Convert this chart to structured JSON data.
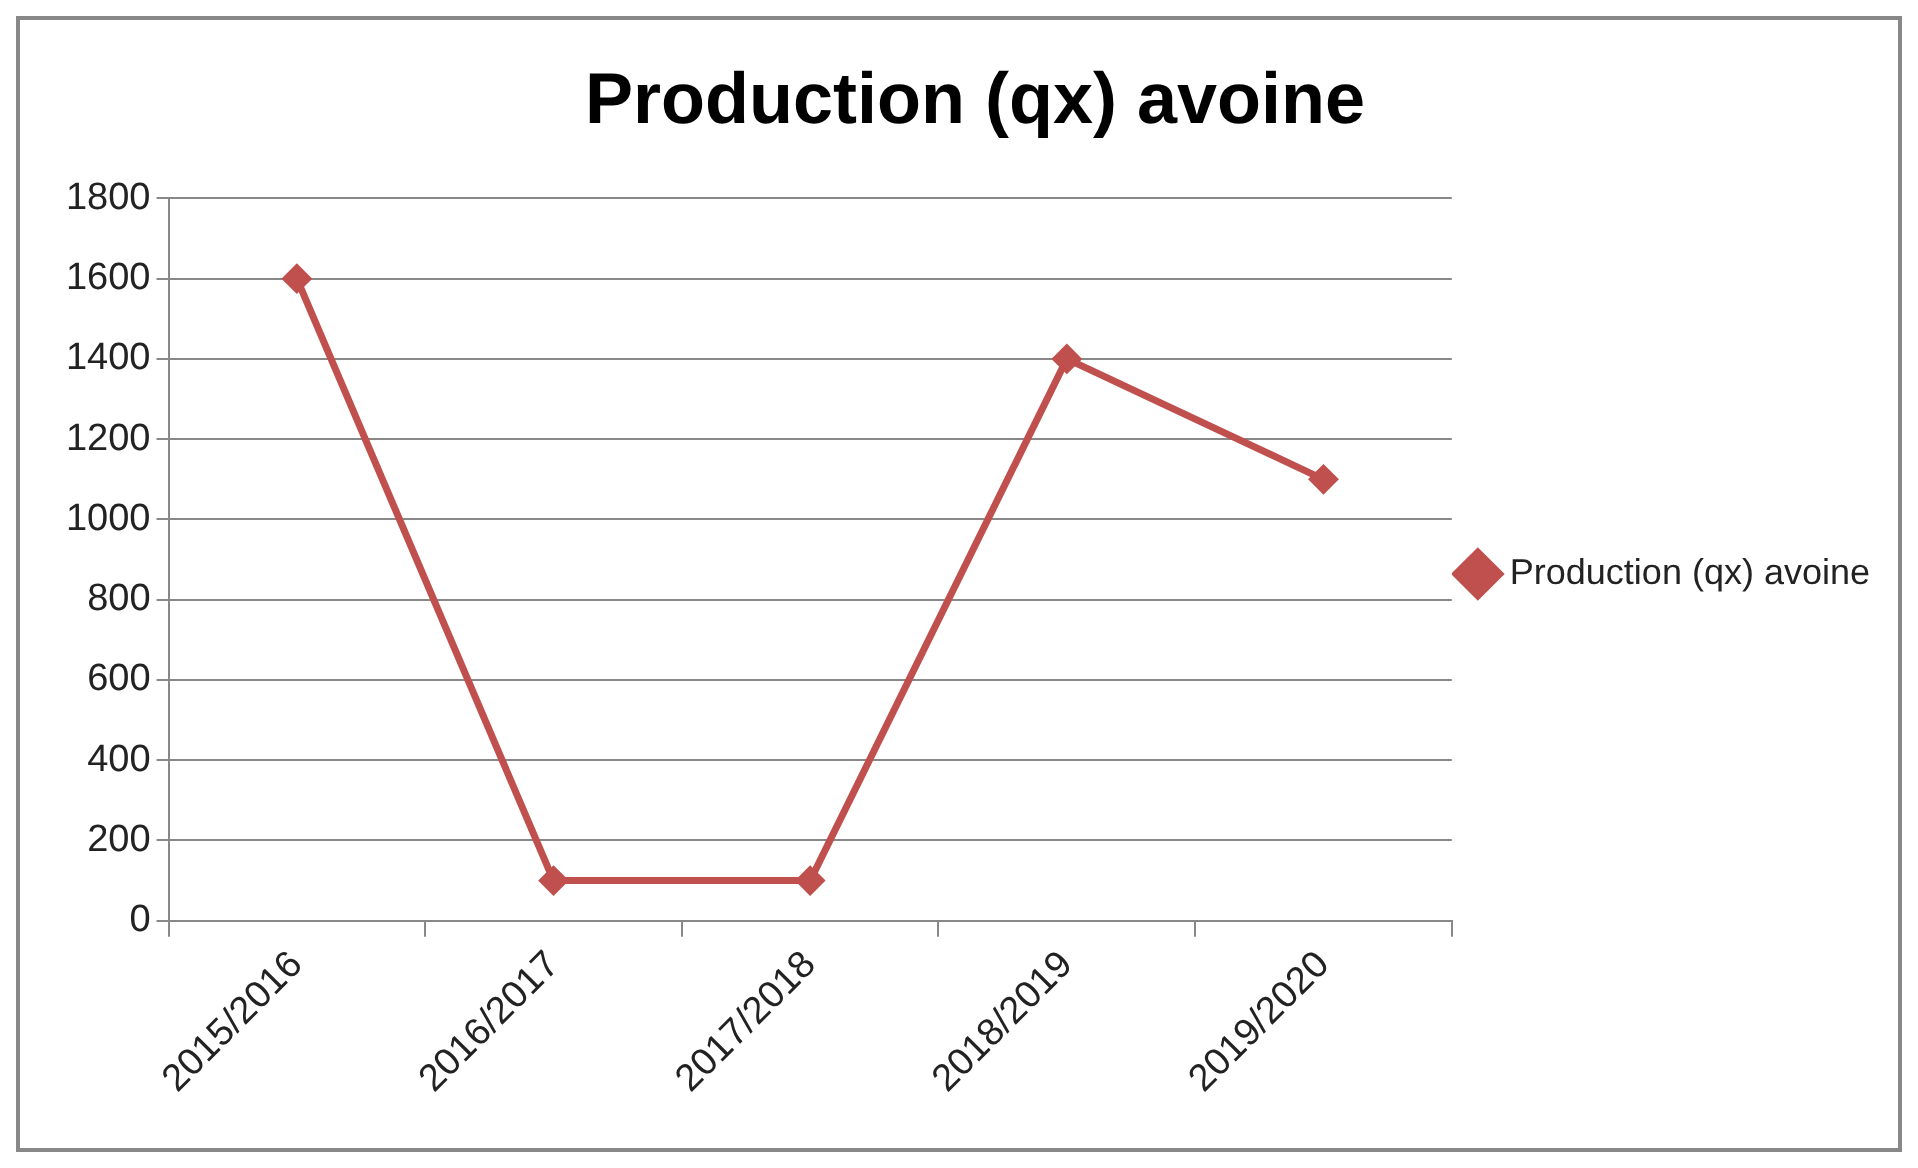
{
  "chart_data": {
    "type": "line",
    "title": "Production (qx) avoine",
    "categories": [
      "2015/2016",
      "2016/2017",
      "2017/2018",
      "2018/2019",
      "2019/2020"
    ],
    "series": [
      {
        "name": "Production (qx) avoine",
        "color": "#c0504d",
        "values": [
          1600,
          100,
          100,
          1400,
          1100
        ]
      }
    ],
    "ylim": [
      0,
      1800
    ],
    "yticks": [
      0,
      200,
      400,
      600,
      800,
      1000,
      1200,
      1400,
      1600,
      1800
    ],
    "grid": "y",
    "legend": "right",
    "marker": "diamond",
    "line_style": "solid"
  }
}
